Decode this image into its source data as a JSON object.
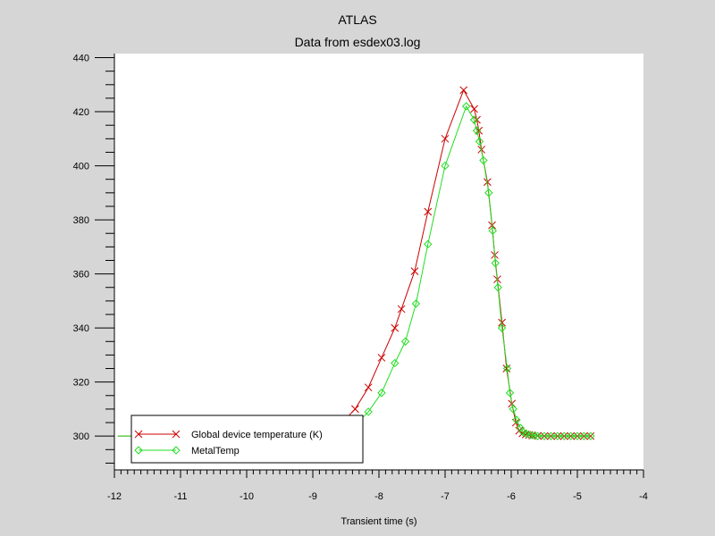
{
  "chart_data": {
    "type": "line",
    "title": "ATLAS",
    "subtitle": "Data from esdex03.log",
    "xlabel": "Transient time (s)",
    "ylabel": "",
    "xlim": [
      -12,
      -4
    ],
    "ylim": [
      287.5,
      441.5
    ],
    "x_ticks": [
      -12,
      -11,
      -10,
      -9,
      -8,
      -7,
      -6,
      -5,
      -4
    ],
    "x_tick_labels": [
      "-12",
      "-11",
      "-10",
      "-9",
      "-8",
      "-7",
      "-6",
      "-5",
      "-4"
    ],
    "y_ticks": [
      300,
      320,
      340,
      360,
      380,
      400,
      420,
      440
    ],
    "y_tick_labels": [
      "300",
      "320",
      "340",
      "360",
      "380",
      "400",
      "420",
      "440"
    ],
    "grid": false,
    "legend_position": "bottom-left",
    "series": [
      {
        "name": "Global device temperature (K)",
        "color": "#cc0000",
        "marker": "x",
        "points": [
          [
            -11.95,
            300
          ],
          [
            -8.75,
            300
          ],
          [
            -8.56,
            305
          ],
          [
            -8.36,
            310
          ],
          [
            -8.16,
            318
          ],
          [
            -7.96,
            329
          ],
          [
            -7.76,
            340
          ],
          [
            -7.66,
            347
          ],
          [
            -7.46,
            361
          ],
          [
            -7.26,
            383
          ],
          [
            -7.0,
            410
          ],
          [
            -6.72,
            428
          ],
          [
            -6.56,
            421
          ],
          [
            -6.52,
            417
          ],
          [
            -6.49,
            413
          ],
          [
            -6.45,
            406
          ],
          [
            -6.36,
            394
          ],
          [
            -6.29,
            378
          ],
          [
            -6.25,
            367
          ],
          [
            -6.21,
            358
          ],
          [
            -6.14,
            342
          ],
          [
            -6.07,
            325
          ],
          [
            -5.99,
            312
          ],
          [
            -5.93,
            305
          ],
          [
            -5.88,
            302
          ],
          [
            -5.83,
            301
          ],
          [
            -5.78,
            300.6
          ],
          [
            -5.73,
            300.4
          ],
          [
            -5.68,
            300.2
          ],
          [
            -5.6,
            300.1
          ],
          [
            -5.5,
            300
          ],
          [
            -5.4,
            300
          ],
          [
            -5.3,
            300
          ],
          [
            -5.2,
            300
          ],
          [
            -5.1,
            300
          ],
          [
            -5.0,
            300
          ],
          [
            -4.9,
            300
          ],
          [
            -4.8,
            300
          ]
        ]
      },
      {
        "name": "MetalTemp",
        "color": "#22dd22",
        "marker": "diamond",
        "points": [
          [
            -11.95,
            300
          ],
          [
            -8.6,
            300
          ],
          [
            -8.4,
            303
          ],
          [
            -8.16,
            309
          ],
          [
            -7.96,
            316
          ],
          [
            -7.76,
            327
          ],
          [
            -7.6,
            335
          ],
          [
            -7.44,
            349
          ],
          [
            -7.26,
            371
          ],
          [
            -7.0,
            400
          ],
          [
            -6.68,
            422
          ],
          [
            -6.56,
            417
          ],
          [
            -6.52,
            413
          ],
          [
            -6.48,
            409
          ],
          [
            -6.42,
            402
          ],
          [
            -6.34,
            390
          ],
          [
            -6.28,
            376
          ],
          [
            -6.24,
            364
          ],
          [
            -6.2,
            355
          ],
          [
            -6.14,
            340
          ],
          [
            -6.06,
            325
          ],
          [
            -6.02,
            316
          ],
          [
            -5.97,
            310
          ],
          [
            -5.92,
            306
          ],
          [
            -5.86,
            303
          ],
          [
            -5.82,
            301.5
          ],
          [
            -5.77,
            300.8
          ],
          [
            -5.71,
            300.4
          ],
          [
            -5.65,
            300.2
          ],
          [
            -5.6,
            300
          ],
          [
            -5.5,
            300
          ],
          [
            -5.4,
            300
          ],
          [
            -5.3,
            300
          ],
          [
            -5.2,
            300
          ],
          [
            -5.1,
            300
          ],
          [
            -5.0,
            300
          ],
          [
            -4.9,
            300
          ],
          [
            -4.8,
            300
          ]
        ]
      }
    ]
  }
}
